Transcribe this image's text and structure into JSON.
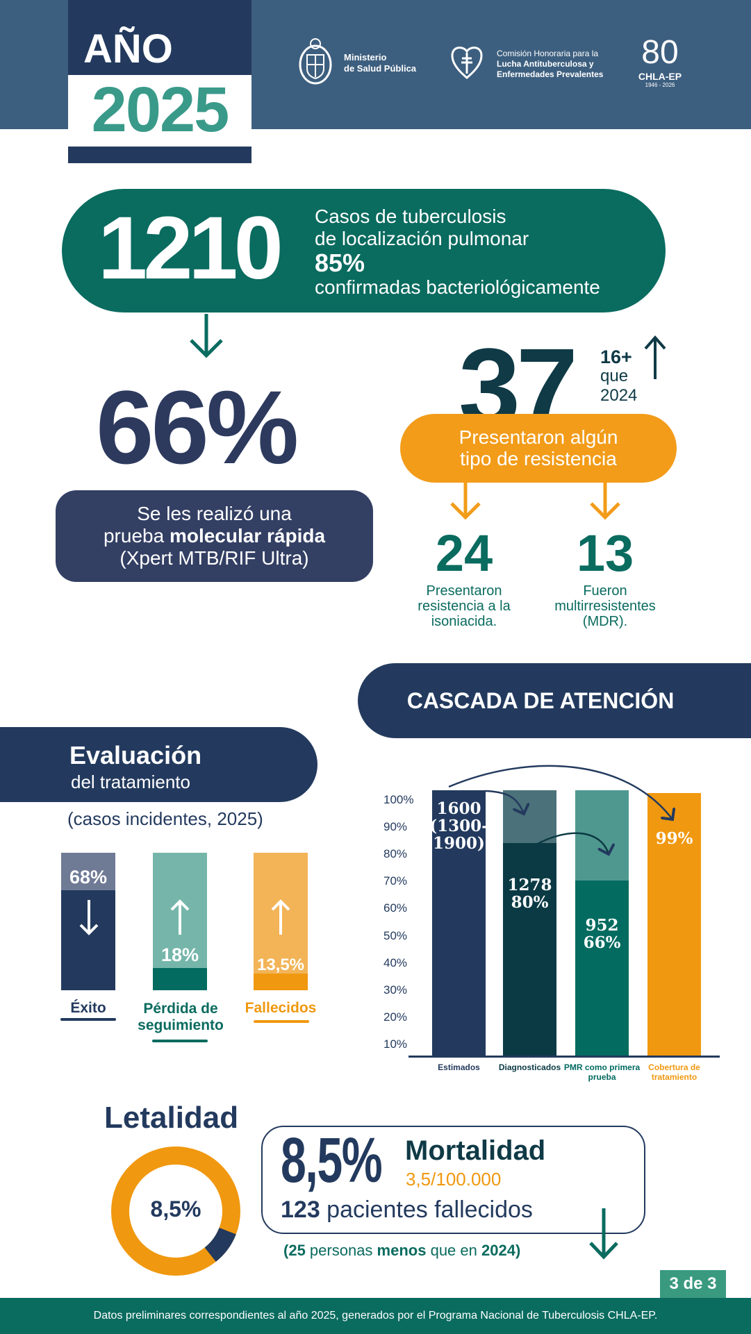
{
  "header": {
    "year_label": "AÑO",
    "year": "2025",
    "logos": {
      "ministerio": [
        "Ministerio",
        "de Salud Pública"
      ],
      "comision": [
        "Comisión Honoraria para la",
        "Lucha Antituberculosa y",
        "Enfermedades Prevalentes"
      ],
      "chla": {
        "mark": "80",
        "name": "CHLA-EP",
        "years": "1946 - 2026"
      }
    }
  },
  "cases": {
    "number": "1210",
    "line1": "Casos de tuberculosis",
    "line2": "de localización pulmonar",
    "pct": "85%",
    "line3": "confirmadas bacteriológicamente"
  },
  "molecular": {
    "pct": "66%",
    "line1": "Se les realizó una",
    "line2_pre": "prueba ",
    "line2_bold": "molecular rápida",
    "line3": "(Xpert MTB/RIF Ultra)"
  },
  "resistance": {
    "number": "37",
    "more": "16+",
    "more_l2": "que",
    "more_l3": "2024",
    "pill_l1": "Presentaron algún",
    "pill_l2": "tipo de resistencia",
    "items": [
      {
        "number": "24",
        "caption": [
          "Presentaron",
          "resistencia a la",
          "isoniacida."
        ]
      },
      {
        "number": "13",
        "caption": [
          "Fueron",
          "multirresistentes",
          "(MDR)."
        ]
      }
    ]
  },
  "cascade_title": "CASCADA DE ATENCIÓN",
  "evaluation": {
    "title": "Evaluación",
    "subtitle": "del tratamiento",
    "note": "(casos incidentes, 2025)",
    "bars": [
      {
        "label": "Éxito",
        "value": "68%",
        "trend": "down"
      },
      {
        "label_l1": "Pérdida de",
        "label_l2": "seguimiento",
        "value": "18%",
        "trend": "up"
      },
      {
        "label": "Fallecidos",
        "value": "13,5%",
        "trend": "up"
      }
    ]
  },
  "chart_data": {
    "type": "bar",
    "title": "CASCADA DE ATENCIÓN",
    "categories": [
      "Estimados",
      "Diagnosticados",
      "PMR como primera prueba",
      "Cobertura de tratamiento"
    ],
    "values": [
      100,
      80,
      66,
      99
    ],
    "bar_labels": [
      [
        "1600",
        "(1300-",
        "1900)"
      ],
      [
        "1278",
        "80%"
      ],
      [
        "952",
        "66%"
      ],
      [
        "99%"
      ]
    ],
    "yticks": [
      "10%",
      "20%",
      "30%",
      "40%",
      "50%",
      "60%",
      "70%",
      "80%",
      "90%",
      "100%"
    ],
    "ylim": [
      10,
      100
    ],
    "colors": [
      "#233a5e",
      "#0b3a44",
      "#036b60",
      "#f0980f"
    ],
    "xlabel": "",
    "ylabel": ""
  },
  "lethality": {
    "title": "Letalidad",
    "donut_value": "8,5%",
    "donut_fraction": 0.085,
    "big_pct": "8,5%",
    "mortality_label": "Mortalidad",
    "mortality_rate": "3,5/100.000",
    "deaths_num": "123",
    "deaths_text": " pacientes fallecidos",
    "compare_open": "(",
    "compare_num": "25",
    "compare_t1": " personas ",
    "compare_bold": "menos",
    "compare_t2": " que en ",
    "compare_year": "2024",
    "compare_close": ")"
  },
  "page_indicator": "3 de 3",
  "footer": "Datos preliminares correspondientes al año 2025, generados por el Programa Nacional de Tuberculosis CHLA-EP."
}
